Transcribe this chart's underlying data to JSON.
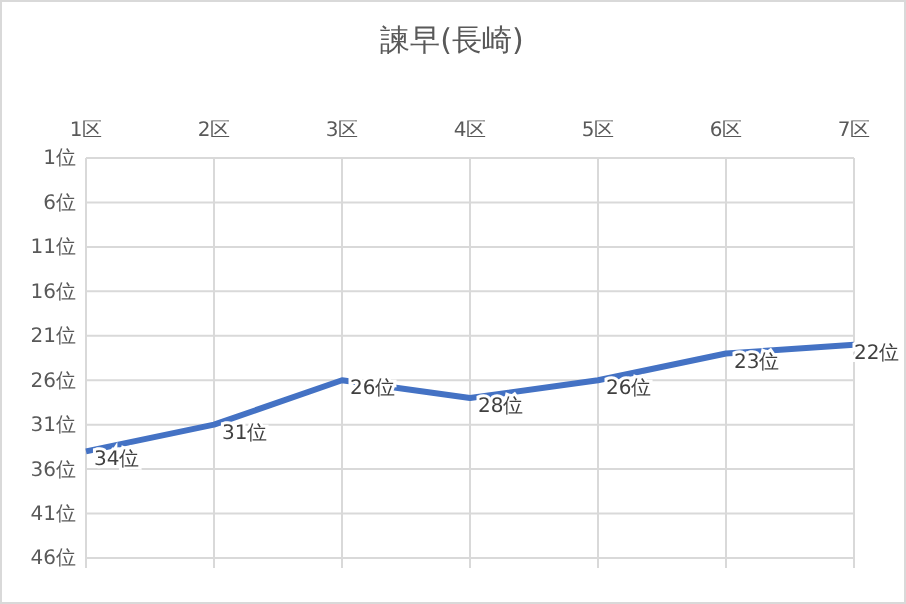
{
  "chart_data": {
    "type": "line",
    "title": "諫早(長崎)",
    "categories": [
      "1区",
      "2区",
      "3区",
      "4区",
      "5区",
      "6区",
      "7区"
    ],
    "series": [
      {
        "color": "#4472c4",
        "values": [
          34,
          31,
          26,
          28,
          26,
          23,
          22
        ],
        "value_labels": [
          "34位",
          "31位",
          "26位",
          "28位",
          "26位",
          "23位",
          "22位"
        ]
      }
    ],
    "ylim": [
      46,
      1
    ],
    "yticks": [
      {
        "value": 1,
        "label": "1位"
      },
      {
        "value": 6,
        "label": "6位"
      },
      {
        "value": 11,
        "label": "11位"
      },
      {
        "value": 16,
        "label": "16位"
      },
      {
        "value": 21,
        "label": "21位"
      },
      {
        "value": 26,
        "label": "26位"
      },
      {
        "value": 31,
        "label": "31位"
      },
      {
        "value": 36,
        "label": "36位"
      },
      {
        "value": 41,
        "label": "41位"
      },
      {
        "value": 46,
        "label": "46位"
      }
    ],
    "grid": true,
    "marker": "none",
    "line_style": "solid"
  }
}
